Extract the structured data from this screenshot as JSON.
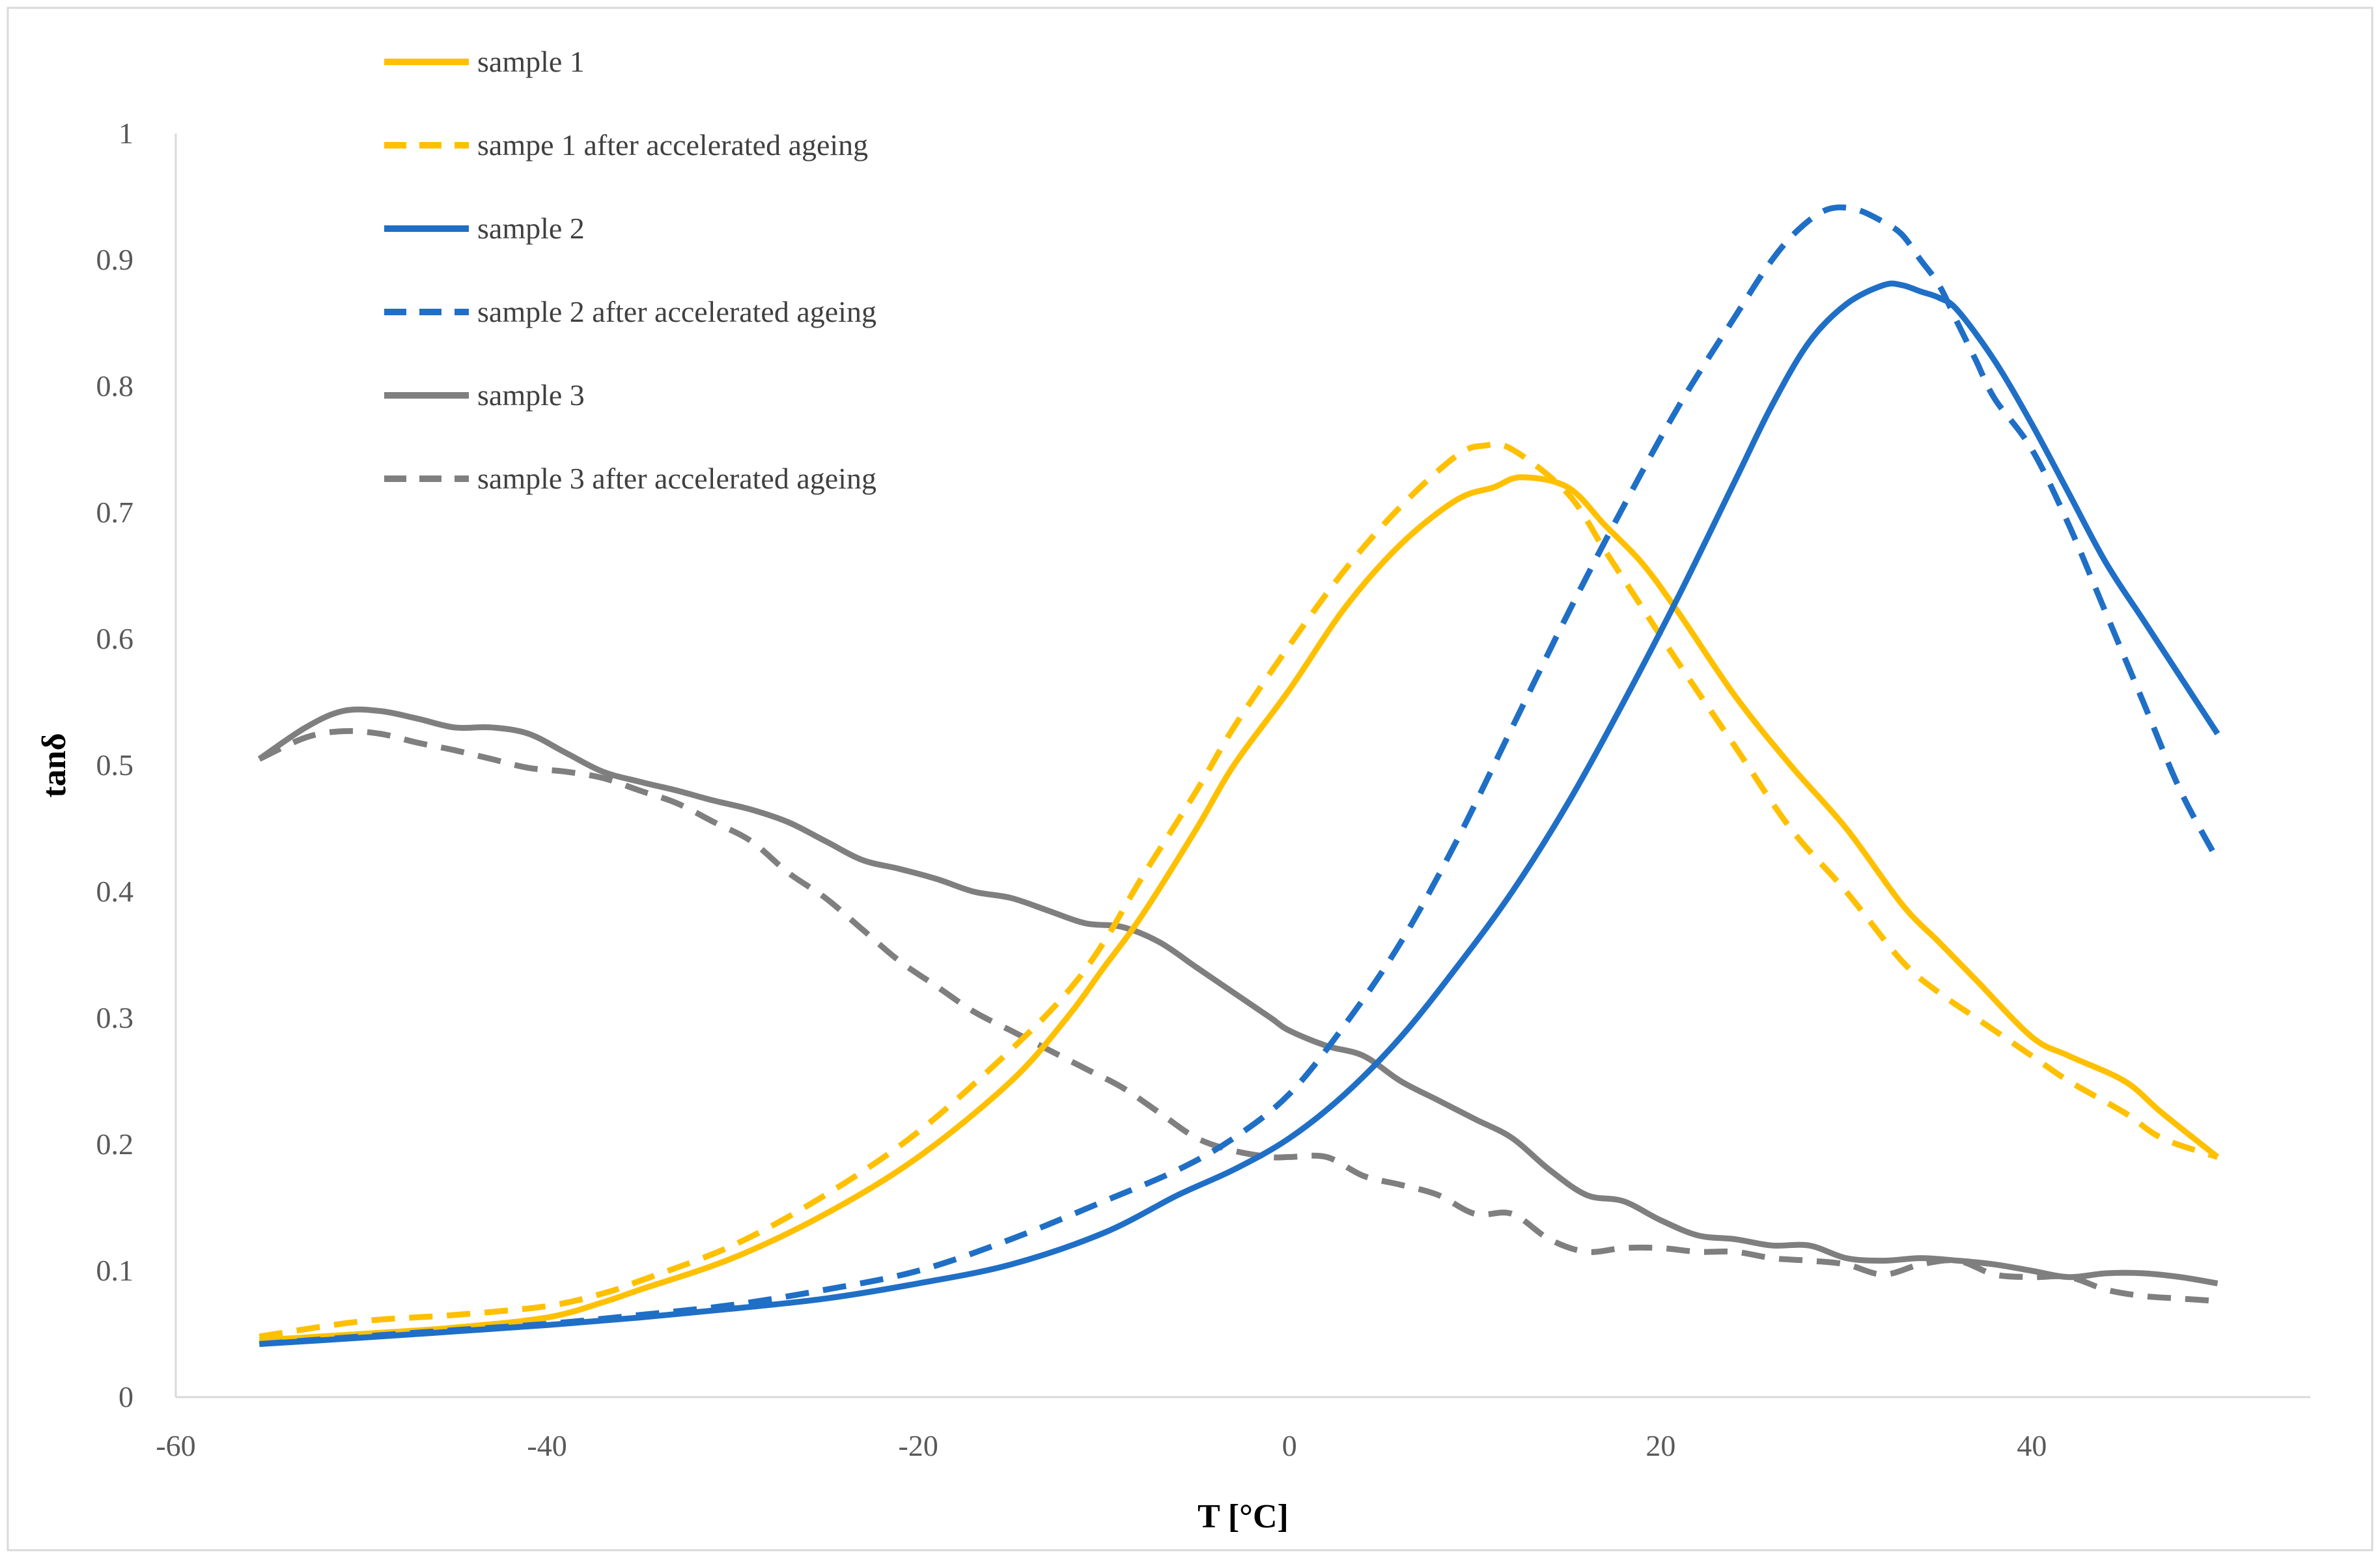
{
  "chart_data": {
    "type": "line",
    "title": "",
    "xlabel": "T [°C]",
    "ylabel": "tanδ",
    "xlim": [
      -60,
      55
    ],
    "ylim": [
      0,
      1
    ],
    "xticks": [
      -60,
      -40,
      -20,
      0,
      20,
      40
    ],
    "yticks": [
      0,
      0.1,
      0.2,
      0.3,
      0.4,
      0.5,
      0.6,
      0.7,
      0.8,
      0.9,
      1
    ],
    "xtick_labels": [
      "-60",
      "-40",
      "-20",
      "0",
      "20",
      "40"
    ],
    "ytick_labels": [
      "0",
      "0.1",
      "0.2",
      "0.3",
      "0.4",
      "0.5",
      "0.6",
      "0.7",
      "0.8",
      "0.9",
      "1"
    ],
    "grid": false,
    "legend_position": "top-left",
    "series": [
      {
        "name": "sample 1",
        "color": "#FFC000",
        "dash": "solid",
        "x": [
          -55.5,
          -50,
          -45,
          -40,
          -37,
          -35,
          -30,
          -25,
          -20,
          -15,
          -12,
          -10,
          -8,
          -5,
          -3,
          0,
          3,
          6,
          9,
          11,
          12.5,
          15,
          17,
          19,
          21,
          24,
          27,
          30,
          33,
          35,
          37,
          40,
          42,
          45,
          47,
          50
        ],
        "y": [
          0.045,
          0.05,
          0.055,
          0.063,
          0.075,
          0.085,
          0.11,
          0.145,
          0.19,
          0.25,
          0.3,
          0.34,
          0.38,
          0.45,
          0.5,
          0.56,
          0.625,
          0.675,
          0.71,
          0.72,
          0.728,
          0.72,
          0.69,
          0.66,
          0.62,
          0.555,
          0.5,
          0.45,
          0.39,
          0.36,
          0.33,
          0.285,
          0.27,
          0.25,
          0.225,
          0.19
        ]
      },
      {
        "name": "sampe 1 after accelerated ageing",
        "color": "#FFC000",
        "dash": "dashed",
        "x": [
          -55.5,
          -50,
          -45,
          -40,
          -37,
          -35,
          -30,
          -25,
          -20,
          -15,
          -12,
          -10,
          -8,
          -5,
          -3,
          0,
          3,
          6,
          9,
          10.5,
          12,
          15,
          17,
          19,
          21,
          24,
          27,
          30,
          33,
          35,
          37,
          40,
          42,
          45,
          47,
          50
        ],
        "y": [
          0.048,
          0.06,
          0.065,
          0.072,
          0.082,
          0.092,
          0.12,
          0.16,
          0.21,
          0.275,
          0.32,
          0.36,
          0.41,
          0.48,
          0.53,
          0.595,
          0.655,
          0.705,
          0.745,
          0.753,
          0.75,
          0.715,
          0.67,
          0.625,
          0.58,
          0.515,
          0.45,
          0.4,
          0.345,
          0.32,
          0.3,
          0.27,
          0.25,
          0.225,
          0.205,
          0.19
        ]
      },
      {
        "name": "sample 2",
        "color": "#1F6FC6",
        "dash": "solid",
        "x": [
          -55.5,
          -50,
          -45,
          -40,
          -35,
          -30,
          -25,
          -20,
          -15,
          -10,
          -6,
          -3,
          0,
          3,
          6,
          9,
          12,
          15,
          18,
          21,
          24,
          26,
          28,
          30,
          32,
          33,
          34,
          35,
          36,
          38,
          40,
          42,
          44,
          46,
          48,
          50
        ],
        "y": [
          0.042,
          0.047,
          0.052,
          0.057,
          0.063,
          0.07,
          0.078,
          0.09,
          0.105,
          0.13,
          0.16,
          0.18,
          0.205,
          0.24,
          0.285,
          0.34,
          0.4,
          0.47,
          0.55,
          0.635,
          0.725,
          0.785,
          0.835,
          0.865,
          0.88,
          0.88,
          0.875,
          0.87,
          0.86,
          0.82,
          0.77,
          0.715,
          0.66,
          0.615,
          0.57,
          0.525
        ]
      },
      {
        "name": "sample 2 after accelerated ageing",
        "color": "#1F6FC6",
        "dash": "dashed",
        "x": [
          -55.5,
          -50,
          -45,
          -40,
          -35,
          -30,
          -25,
          -20,
          -15,
          -10,
          -6,
          -3,
          0,
          3,
          6,
          9,
          12,
          15,
          18,
          21,
          24,
          26,
          27.5,
          29,
          30.5,
          32,
          33,
          34,
          35,
          36,
          37,
          38,
          40,
          42,
          44,
          46,
          48,
          50
        ],
        "y": [
          0.042,
          0.048,
          0.053,
          0.058,
          0.065,
          0.073,
          0.085,
          0.1,
          0.125,
          0.155,
          0.18,
          0.205,
          0.24,
          0.295,
          0.36,
          0.44,
          0.53,
          0.62,
          0.705,
          0.785,
          0.855,
          0.9,
          0.925,
          0.94,
          0.94,
          0.93,
          0.92,
          0.9,
          0.88,
          0.85,
          0.82,
          0.79,
          0.75,
          0.69,
          0.62,
          0.55,
          0.48,
          0.425
        ]
      },
      {
        "name": "sample 3",
        "color": "#7F7F7F",
        "dash": "solid",
        "x": [
          -55.5,
          -53,
          -51,
          -49,
          -47,
          -45,
          -43,
          -41,
          -39,
          -37,
          -35,
          -33,
          -31,
          -29,
          -27,
          -25,
          -23,
          -21,
          -19,
          -17,
          -15,
          -13,
          -11,
          -9,
          -7,
          -5,
          -3,
          -1,
          0,
          2,
          4,
          6,
          8,
          10,
          12,
          14,
          16,
          18,
          20,
          22,
          24,
          26,
          28,
          30,
          32,
          34,
          36,
          38,
          40,
          42,
          44,
          46,
          48,
          50
        ],
        "y": [
          0.505,
          0.53,
          0.543,
          0.543,
          0.537,
          0.53,
          0.53,
          0.525,
          0.51,
          0.495,
          0.487,
          0.48,
          0.472,
          0.465,
          0.455,
          0.44,
          0.425,
          0.418,
          0.41,
          0.4,
          0.395,
          0.385,
          0.375,
          0.372,
          0.36,
          0.34,
          0.32,
          0.3,
          0.29,
          0.278,
          0.27,
          0.25,
          0.235,
          0.22,
          0.205,
          0.18,
          0.16,
          0.155,
          0.14,
          0.128,
          0.125,
          0.12,
          0.12,
          0.11,
          0.108,
          0.11,
          0.108,
          0.105,
          0.1,
          0.095,
          0.098,
          0.098,
          0.095,
          0.09
        ]
      },
      {
        "name": "sample 3 after accelerated ageing",
        "color": "#7F7F7F",
        "dash": "dashed",
        "x": [
          -55.5,
          -53,
          -51,
          -49,
          -47,
          -45,
          -43,
          -41,
          -39,
          -37,
          -35,
          -33,
          -31,
          -29,
          -27,
          -25,
          -23,
          -21,
          -19,
          -17,
          -15,
          -13,
          -11,
          -9,
          -7,
          -5,
          -3,
          -1,
          0,
          2,
          4,
          6,
          8,
          10,
          12,
          14,
          16,
          18,
          20,
          22,
          24,
          26,
          28,
          30,
          32,
          34,
          36,
          38,
          40,
          42,
          44,
          46,
          48,
          50
        ],
        "y": [
          0.505,
          0.522,
          0.527,
          0.525,
          0.518,
          0.512,
          0.505,
          0.498,
          0.495,
          0.49,
          0.48,
          0.47,
          0.455,
          0.44,
          0.415,
          0.395,
          0.37,
          0.345,
          0.325,
          0.305,
          0.29,
          0.275,
          0.26,
          0.245,
          0.225,
          0.205,
          0.195,
          0.19,
          0.19,
          0.19,
          0.175,
          0.168,
          0.16,
          0.145,
          0.145,
          0.125,
          0.115,
          0.118,
          0.118,
          0.115,
          0.115,
          0.11,
          0.108,
          0.105,
          0.097,
          0.105,
          0.108,
          0.097,
          0.095,
          0.095,
          0.085,
          0.08,
          0.078,
          0.076
        ]
      }
    ]
  }
}
